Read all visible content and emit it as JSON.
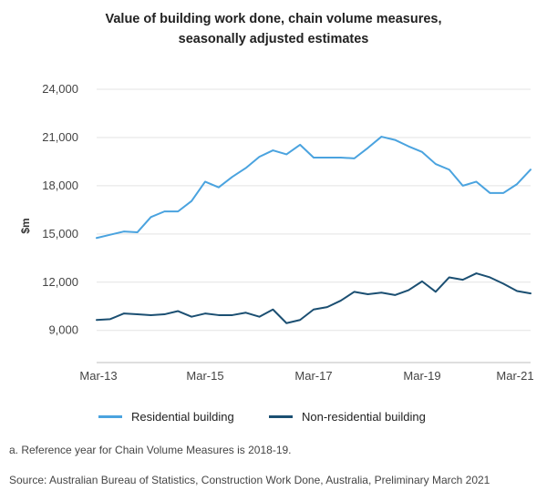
{
  "chart_data": {
    "type": "line",
    "title_lines": [
      "Value of building work done, chain volume measures,",
      "seasonally adjusted estimates"
    ],
    "ylabel": "$m",
    "xlabel": "",
    "ylim": [
      7000,
      24000
    ],
    "yticks": [
      9000,
      12000,
      15000,
      18000,
      21000,
      24000
    ],
    "ytick_labels": [
      "9,000",
      "12,000",
      "15,000",
      "18,000",
      "21,000",
      "24,000"
    ],
    "x_start": "Mar-13",
    "x_tick_labels": [
      "Mar-13",
      "Mar-15",
      "Mar-17",
      "Mar-19",
      "Mar-21"
    ],
    "x_tick_index": [
      0,
      8,
      16,
      24,
      32
    ],
    "x": [
      "Mar-13",
      "Jun-13",
      "Sep-13",
      "Dec-13",
      "Mar-14",
      "Jun-14",
      "Sep-14",
      "Dec-14",
      "Mar-15",
      "Jun-15",
      "Sep-15",
      "Dec-15",
      "Mar-16",
      "Jun-16",
      "Sep-16",
      "Dec-16",
      "Mar-17",
      "Jun-17",
      "Sep-17",
      "Dec-17",
      "Mar-18",
      "Jun-18",
      "Sep-18",
      "Dec-18",
      "Mar-19",
      "Jun-19",
      "Sep-19",
      "Dec-19",
      "Mar-20",
      "Jun-20",
      "Sep-20",
      "Dec-20",
      "Mar-21"
    ],
    "grid": true,
    "legend_position": "bottom",
    "series": [
      {
        "name": "Residential building",
        "color": "#4aa3df",
        "values": [
          14750,
          14950,
          15150,
          15100,
          16050,
          16400,
          16400,
          17050,
          18250,
          17900,
          18550,
          19100,
          19800,
          20200,
          19950,
          20550,
          19750,
          19750,
          19750,
          19700,
          20350,
          21050,
          20850,
          20450,
          20100,
          19350,
          19000,
          18000,
          18250,
          17550,
          17550,
          18100,
          19000
        ]
      },
      {
        "name": "Non-residential building",
        "color": "#1b4f72",
        "values": [
          9650,
          9700,
          10050,
          10000,
          9950,
          10000,
          10200,
          9850,
          10050,
          9950,
          9950,
          10100,
          9850,
          10300,
          9450,
          9650,
          10300,
          10450,
          10850,
          11400,
          11250,
          11350,
          11200,
          11500,
          12050,
          11400,
          12300,
          12150,
          12550,
          12300,
          11900,
          11450,
          11300
        ]
      }
    ]
  },
  "footnotes": {
    "note_a": "a. Reference year for Chain Volume Measures is 2018-19.",
    "source": "Source: Australian Bureau of Statistics, Construction Work Done, Australia, Preliminary March 2021"
  }
}
